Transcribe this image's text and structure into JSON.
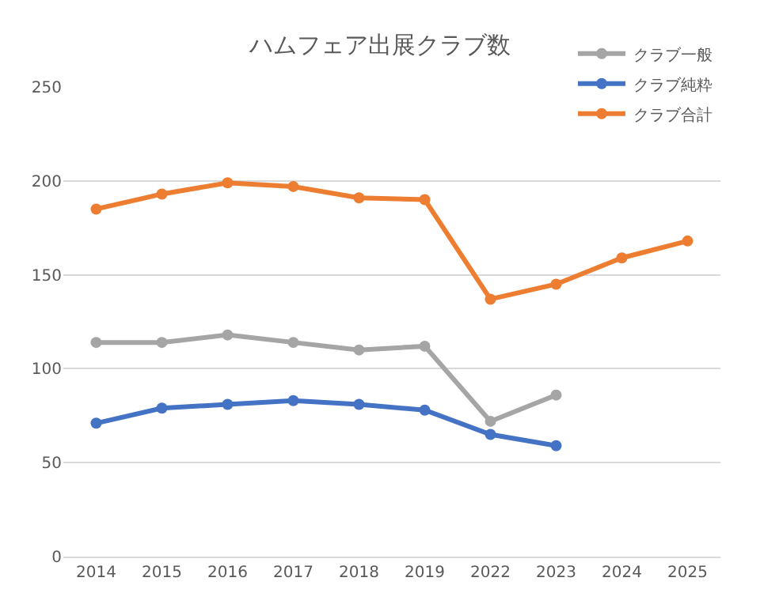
{
  "chart_data": {
    "type": "line",
    "title": "ハムフェア出展クラブ数",
    "categories": [
      "2014",
      "2015",
      "2016",
      "2017",
      "2018",
      "2019",
      "2022",
      "2023",
      "2024",
      "2025"
    ],
    "series": [
      {
        "name": "クラブ一般",
        "color": "#a5a5a5",
        "values": [
          114,
          114,
          118,
          114,
          110,
          112,
          72,
          86,
          null,
          null
        ]
      },
      {
        "name": "クラブ純粋",
        "color": "#4472c4",
        "values": [
          71,
          79,
          81,
          83,
          81,
          78,
          65,
          59,
          null,
          null
        ]
      },
      {
        "name": "クラブ合計",
        "color": "#ed7d31",
        "values": [
          185,
          193,
          199,
          197,
          191,
          190,
          137,
          145,
          159,
          168
        ]
      }
    ],
    "ylim": [
      0,
      250
    ],
    "yticks": [
      0,
      50,
      100,
      150,
      200,
      250
    ],
    "grid": "y",
    "legend": "top right",
    "marker": "circle",
    "line_style": "solid"
  }
}
